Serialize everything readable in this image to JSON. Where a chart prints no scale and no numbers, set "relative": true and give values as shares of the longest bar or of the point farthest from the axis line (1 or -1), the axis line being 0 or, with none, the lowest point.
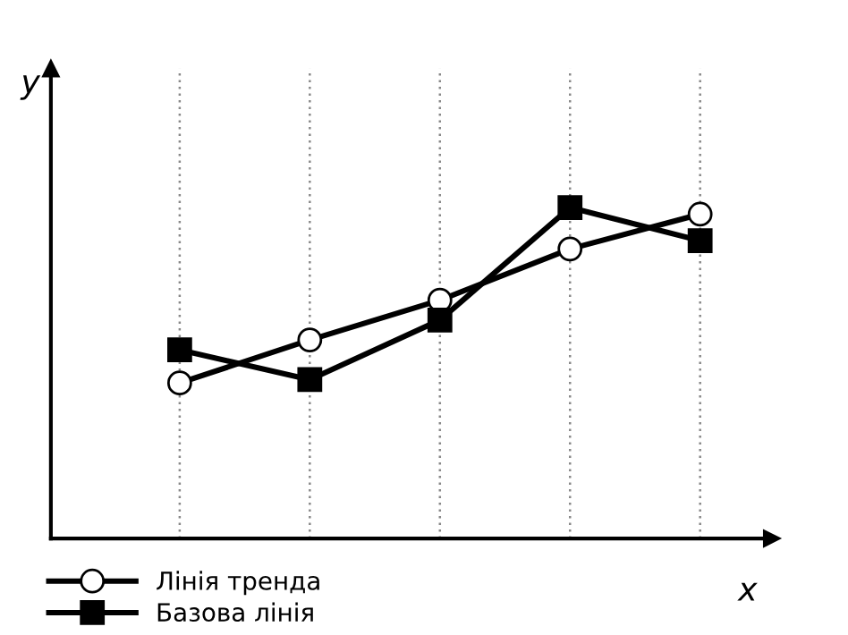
{
  "chart_data": {
    "type": "line",
    "relative": true,
    "xlabel": "x",
    "ylabel": "y",
    "categories": [
      null,
      null,
      null,
      null,
      null
    ],
    "series": [
      {
        "name": "Лінія тренда",
        "color": "#000000",
        "marker": "circle",
        "values": [
          0.47,
          0.6,
          0.72,
          0.875,
          0.98
        ]
      },
      {
        "name": "Базова лінія",
        "color": "#000000",
        "marker": "square",
        "values": [
          0.57,
          0.48,
          0.66,
          1.0,
          0.9
        ]
      }
    ],
    "grid": "x",
    "legend": "bottom left",
    "line_style": "solid"
  }
}
